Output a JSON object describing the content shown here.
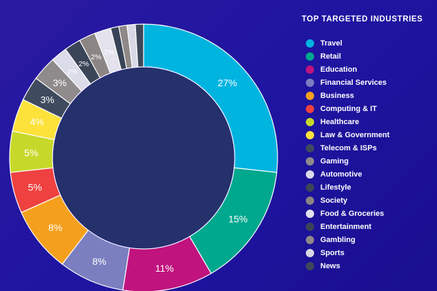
{
  "legend_title": "TOP TARGETED INDUSTRIES",
  "chart_data": {
    "type": "pie",
    "donut": true,
    "title": "TOP TARGETED INDUSTRIES",
    "legend_position": "right",
    "series": [
      {
        "name": "Travel",
        "value": 27,
        "label": "27%",
        "color": "#00b4e0"
      },
      {
        "name": "Retail",
        "value": 15,
        "label": "15%",
        "color": "#00a88e"
      },
      {
        "name": "Education",
        "value": 11,
        "label": "11%",
        "color": "#c0137e"
      },
      {
        "name": "Financial Services",
        "value": 8,
        "label": "8%",
        "color": "#7b7fc0"
      },
      {
        "name": "Business",
        "value": 8,
        "label": "8%",
        "color": "#f5a01c"
      },
      {
        "name": "Computing & IT",
        "value": 5,
        "label": "5%",
        "color": "#ee4140"
      },
      {
        "name": "Healthcare",
        "value": 5,
        "label": "5%",
        "color": "#c6d92a"
      },
      {
        "name": "Law & Government",
        "value": 4,
        "label": "4%",
        "color": "#fde23a"
      },
      {
        "name": "Telecom & ISPs",
        "value": 3,
        "label": "3%",
        "color": "#3f4a5e"
      },
      {
        "name": "Gaming",
        "value": 3,
        "label": "3%",
        "color": "#8f8a8c"
      },
      {
        "name": "Automotive",
        "value": 2,
        "label": "2%",
        "color": "#dcdbe9"
      },
      {
        "name": "Lifestyle",
        "value": 2,
        "label": "2%",
        "color": "#3b4558"
      },
      {
        "name": "Society",
        "value": 2,
        "label": "2%",
        "color": "#8b8584"
      },
      {
        "name": "Food & Groceries",
        "value": 2,
        "label": "2%",
        "color": "#e4e2ec"
      },
      {
        "name": "Entertainment",
        "value": 1,
        "label": "",
        "color": "#394357"
      },
      {
        "name": "Gambling",
        "value": 1,
        "label": "",
        "color": "#8e8987"
      },
      {
        "name": "Sports",
        "value": 1,
        "label": "",
        "color": "#d9d8e6"
      },
      {
        "name": "News",
        "value": 1,
        "label": "",
        "color": "#3d475a"
      }
    ]
  }
}
